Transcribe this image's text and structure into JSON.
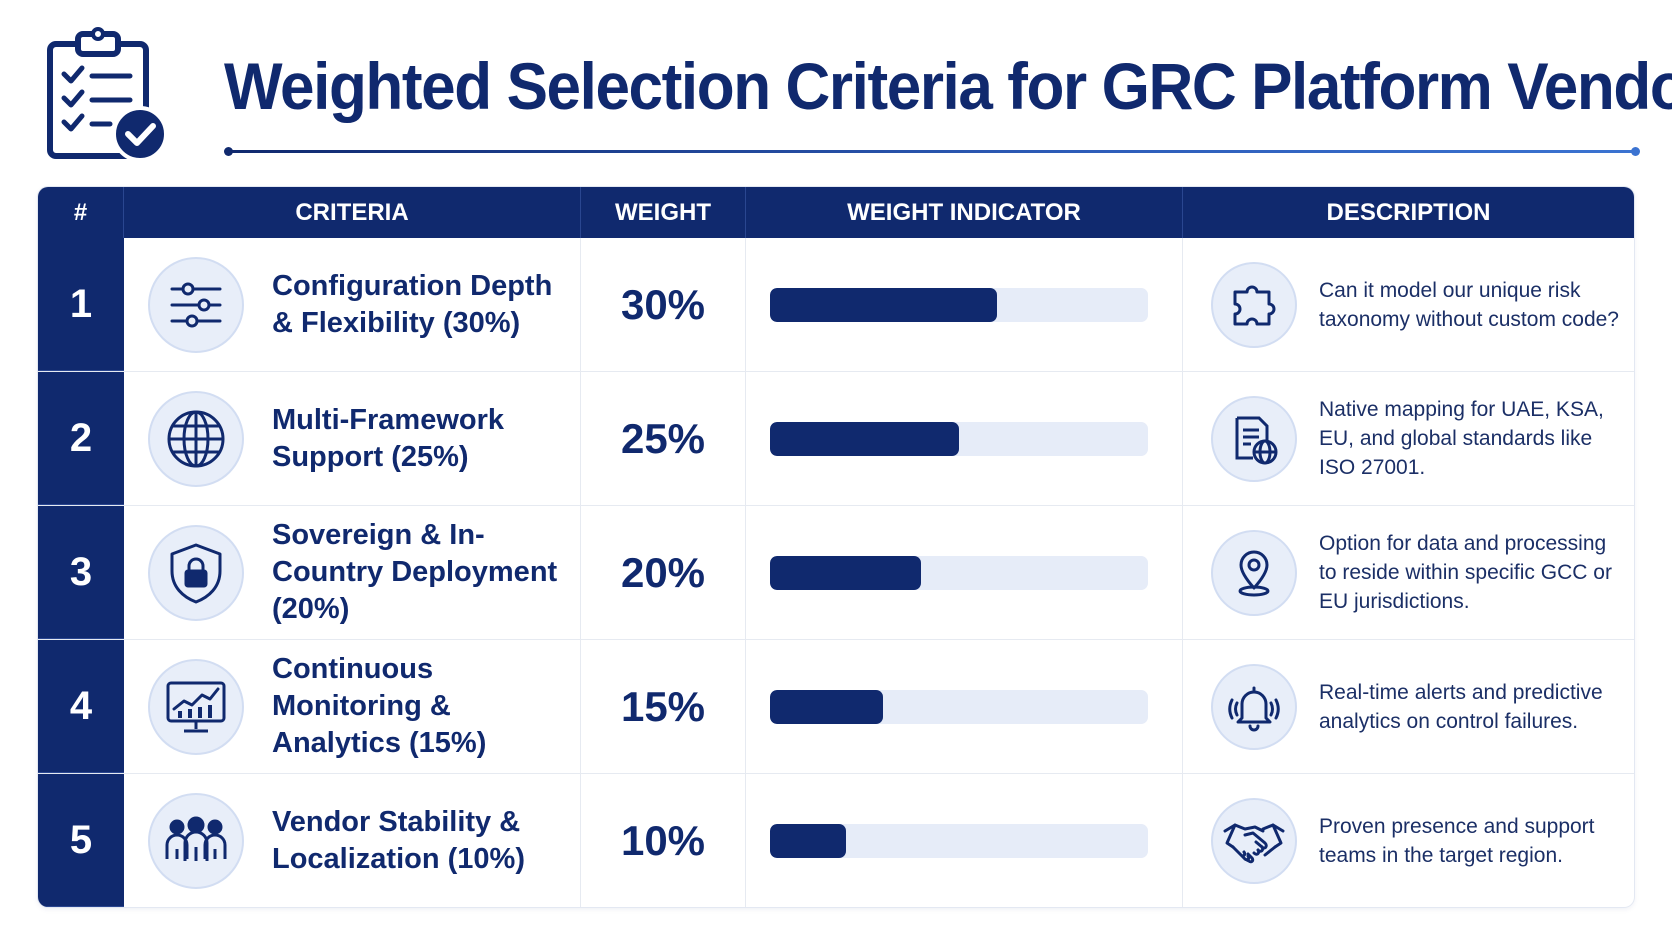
{
  "title": "Weighted Selection Criteria for GRC Platform Vendors",
  "header_icon": "clipboard-checklist-icon",
  "colors": {
    "navy": "#10296e",
    "accent_blue": "#3b73d1",
    "track": "#e6ecf8",
    "icon_bg": "#e8eef9"
  },
  "table": {
    "headers": {
      "num": "#",
      "criteria": "CRITERIA",
      "weight": "WEIGHT",
      "indicator": "WEIGHT INDICATOR",
      "description": "DESCRIPTION"
    },
    "rows": [
      {
        "num": "1",
        "icon": "sliders-icon",
        "criteria": "Configuration Depth & Flexibility (30%)",
        "weight": "30%",
        "fraction": 0.3,
        "desc_icon": "puzzle-icon",
        "description": "Can it model our unique risk taxonomy without custom code?"
      },
      {
        "num": "2",
        "icon": "globe-icon",
        "criteria": "Multi-Framework Support (25%)",
        "weight": "25%",
        "fraction": 0.25,
        "desc_icon": "document-globe-icon",
        "description": "Native mapping for UAE, KSA, EU, and global standards like ISO 27001."
      },
      {
        "num": "3",
        "icon": "shield-lock-icon",
        "criteria": "Sovereign & In-Country Deployment (20%)",
        "weight": "20%",
        "fraction": 0.2,
        "desc_icon": "location-pin-icon",
        "description": "Option for data and processing to reside within specific GCC or EU jurisdictions."
      },
      {
        "num": "4",
        "icon": "monitor-chart-icon",
        "criteria": "Continuous Monitoring & Analytics (15%)",
        "weight": "15%",
        "fraction": 0.15,
        "desc_icon": "bell-alert-icon",
        "description": "Real-time alerts and predictive analytics on control failures."
      },
      {
        "num": "5",
        "icon": "team-icon",
        "criteria": "Vendor Stability & Localization (10%)",
        "weight": "10%",
        "fraction": 0.1,
        "desc_icon": "handshake-icon",
        "description": "Proven presence and support teams in the target region."
      }
    ]
  }
}
